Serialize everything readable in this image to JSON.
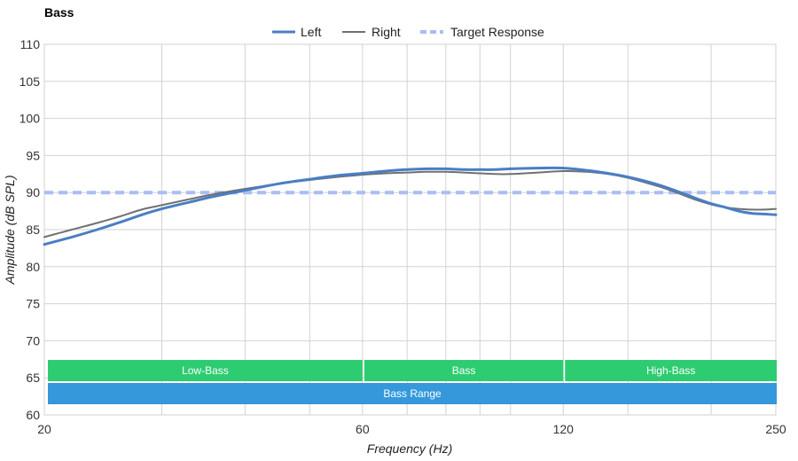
{
  "chart_data": {
    "type": "line",
    "title": "Bass",
    "xlabel": "Frequency (Hz)",
    "ylabel": "Amplitude (dB SPL)",
    "x_scale": "log",
    "xlim": [
      20,
      250
    ],
    "ylim": [
      60,
      110
    ],
    "x_ticks": [
      {
        "value": 20,
        "label": "20"
      },
      {
        "value": 60,
        "label": "60"
      },
      {
        "value": 120,
        "label": "120"
      },
      {
        "value": 250,
        "label": "250"
      }
    ],
    "x_grid": [
      20,
      30,
      40,
      50,
      60,
      70,
      80,
      90,
      100,
      120,
      150,
      200,
      250
    ],
    "y_ticks": [
      60,
      65,
      70,
      75,
      80,
      85,
      90,
      95,
      100,
      105,
      110
    ],
    "grid": true,
    "legend_position": "top-center",
    "series": [
      {
        "name": "Left",
        "color": "#4a7ec4",
        "style": "solid-thick",
        "x": [
          20,
          22,
          24,
          26,
          28,
          30,
          33,
          36,
          40,
          45,
          50,
          55,
          60,
          65,
          70,
          75,
          80,
          85,
          90,
          95,
          100,
          110,
          120,
          130,
          140,
          150,
          160,
          170,
          180,
          190,
          200,
          210,
          220,
          230,
          240,
          250
        ],
        "y": [
          83.0,
          84.0,
          85.0,
          86.0,
          87.0,
          87.8,
          88.7,
          89.5,
          90.3,
          91.2,
          91.8,
          92.3,
          92.6,
          92.9,
          93.1,
          93.2,
          93.2,
          93.1,
          93.1,
          93.1,
          93.2,
          93.3,
          93.3,
          93.0,
          92.6,
          92.1,
          91.5,
          90.8,
          90.0,
          89.2,
          88.5,
          88.0,
          87.5,
          87.2,
          87.1,
          87.0
        ]
      },
      {
        "name": "Right",
        "color": "#707070",
        "style": "solid-thin",
        "x": [
          20,
          22,
          24,
          26,
          28,
          30,
          33,
          36,
          40,
          45,
          50,
          55,
          60,
          65,
          70,
          75,
          80,
          85,
          90,
          95,
          100,
          110,
          120,
          130,
          140,
          150,
          160,
          170,
          180,
          190,
          200,
          210,
          220,
          230,
          240,
          250
        ],
        "y": [
          84.0,
          85.0,
          85.9,
          86.8,
          87.7,
          88.3,
          89.1,
          89.8,
          90.5,
          91.2,
          91.7,
          92.1,
          92.4,
          92.6,
          92.7,
          92.8,
          92.8,
          92.7,
          92.6,
          92.5,
          92.5,
          92.7,
          92.9,
          92.8,
          92.5,
          92.0,
          91.3,
          90.6,
          89.8,
          89.0,
          88.4,
          88.0,
          87.8,
          87.7,
          87.7,
          87.8
        ]
      },
      {
        "name": "Target Response",
        "color": "#a9bdf5",
        "style": "dashed",
        "x": [
          20,
          250
        ],
        "y": [
          90,
          90
        ]
      }
    ],
    "bands": [
      {
        "label": "Low-Bass",
        "from": 20,
        "to": 60,
        "color": "#2ecc71",
        "row": 1
      },
      {
        "label": "Bass",
        "from": 60,
        "to": 120,
        "color": "#2ecc71",
        "row": 1
      },
      {
        "label": "High-Bass",
        "from": 120,
        "to": 250,
        "color": "#2ecc71",
        "row": 1
      },
      {
        "label": "Bass Range",
        "from": 20,
        "to": 250,
        "color": "#3498db",
        "row": 2
      }
    ]
  }
}
